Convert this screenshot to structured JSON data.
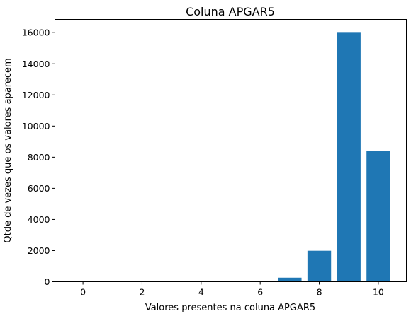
{
  "chart_data": {
    "type": "bar",
    "title": "Coluna APGAR5",
    "xlabel": "Valores presentes na coluna APGAR5",
    "ylabel": "Qtde de vezes que os valores aparecem",
    "x": [
      0,
      1,
      2,
      3,
      4,
      5,
      6,
      7,
      8,
      9,
      10
    ],
    "values": [
      30,
      20,
      25,
      20,
      25,
      35,
      60,
      260,
      1990,
      16040,
      8380
    ],
    "xlim": [
      -0.95,
      10.95
    ],
    "ylim": [
      0,
      16850
    ],
    "xticks": [
      0,
      2,
      4,
      6,
      8,
      10
    ],
    "yticks": [
      0,
      2000,
      4000,
      6000,
      8000,
      10000,
      12000,
      14000,
      16000
    ],
    "bar_color": "#1f77b4",
    "grid": false,
    "legend": "none"
  }
}
